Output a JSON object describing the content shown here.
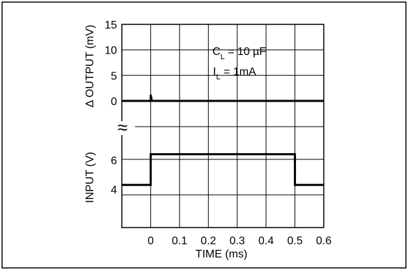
{
  "chart_data": {
    "type": "line",
    "xlabel": "TIME (ms)",
    "x_ticks": [
      "0",
      "0.1",
      "0.2",
      "0.3",
      "0.4",
      "0.5",
      "0.6"
    ],
    "xlim": [
      -0.1,
      0.6
    ],
    "grid": true,
    "upper_panel": {
      "ylabel": "Δ OUTPUT (mV)",
      "y_ticks": [
        "15",
        "10",
        "5",
        "0"
      ],
      "ylim": [
        0,
        15
      ],
      "series": [
        {
          "x": [
            -0.1,
            0.0,
            0.0,
            0.0,
            0.003,
            0.003,
            0.6
          ],
          "y": [
            0,
            0,
            1.2,
            1.2,
            0.3,
            0,
            0
          ]
        }
      ]
    },
    "lower_panel": {
      "ylabel": "INPUT (V)",
      "y_ticks": [
        "6",
        "4"
      ],
      "series": [
        {
          "x": [
            -0.1,
            0.0,
            0.0,
            0.5,
            0.5,
            0.6
          ],
          "y": [
            4.3,
            4.3,
            6.4,
            6.4,
            4.3,
            4.3
          ]
        }
      ]
    },
    "annotations": {
      "cl_main": "C",
      "cl_sub": "L",
      "cl_rest": " = 10 µF",
      "il_main": "I",
      "il_sub": "L",
      "il_rest": " = 1mA"
    },
    "axis_break_symbol": "≈"
  }
}
